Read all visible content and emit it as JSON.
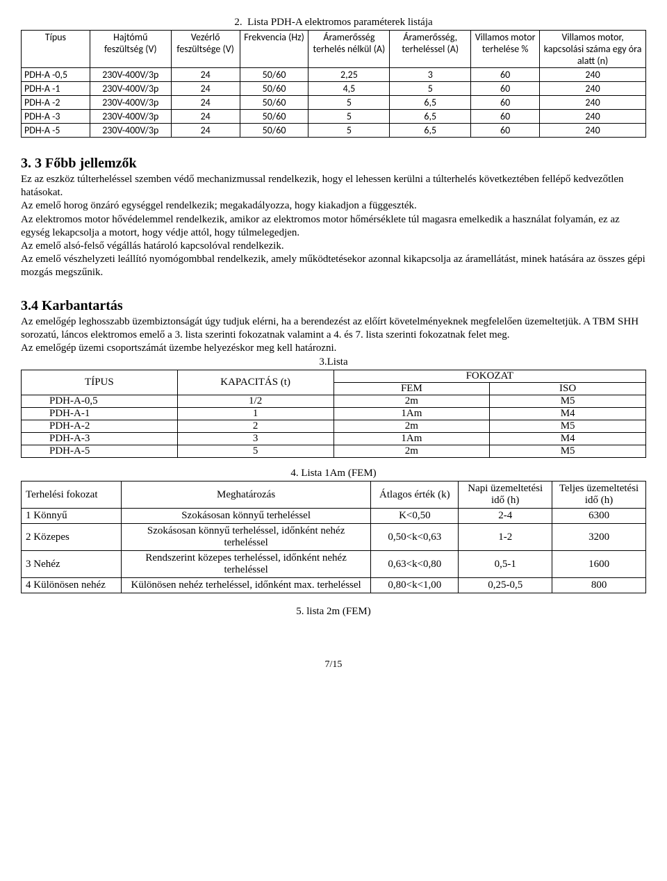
{
  "title_para": "2.  Lista PDH-A elektromos paraméterek listája",
  "table1_caption": "",
  "t1_headers": [
    "Típus",
    "Hajtómű feszültség (V)",
    "Vezérlő feszültsége (V)",
    "Frekvencia (Hz)",
    "Áramerősség terhelés nélkül (A)",
    "Áramerősség, terheléssel (A)",
    "Villamos motor terhelése %",
    "Villamos motor, kapcsolási száma egy óra alatt (n)"
  ],
  "t1_rows": [
    [
      "PDH-A -0,5",
      "230V-400V/3p",
      "24",
      "50/60",
      "2,25",
      "3",
      "60",
      "240"
    ],
    [
      "PDH-A -1",
      "230V-400V/3p",
      "24",
      "50/60",
      "4,5",
      "5",
      "60",
      "240"
    ],
    [
      "PDH-A -2",
      "230V-400V/3p",
      "24",
      "50/60",
      "5",
      "6,5",
      "60",
      "240"
    ],
    [
      "PDH-A -3",
      "230V-400V/3p",
      "24",
      "50/60",
      "5",
      "6,5",
      "60",
      "240"
    ],
    [
      "PDH-A -5",
      "230V-400V/3p",
      "24",
      "50/60",
      "5",
      "6,5",
      "60",
      "240"
    ]
  ],
  "sec33_title": "3. 3 Főbb jellemzők",
  "sec33_body": "Ez az eszköz túlterheléssel szemben védő mechanizmussal rendelkezik, hogy el lehessen kerülni a túlterhelés következtében fellépő kedvezőtlen hatásokat.\nAz emelő horog önzáró egységgel rendelkezik; megakadályozza, hogy kiakadjon a függeszték.\nAz elektromos motor hővédelemmel rendelkezik, amikor az elektromos motor hőmérséklete túl magasra emelkedik a használat folyamán, ez az egység lekapcsolja a motort, hogy védje attól, hogy túlmelegedjen.\nAz emelő alsó-felső végállás határoló kapcsolóval rendelkezik.\nAz emelő vészhelyzeti leállító nyomógombbal rendelkezik, amely működtetésekor azonnal kikapcsolja az áramellátást, minek hatására az összes gépi mozgás megszűnik.",
  "sec34_title": "3.4 Karbantartás",
  "sec34_body_a": "Az emelőgép leghosszabb üzembiztonságát úgy tudjuk elérni, ha a berendezést az előírt követelményeknek megfelelően üzemeltetjük. A TBM SHH sorozatú, láncos elektromos emelő a 3. lista szerinti fokozatnak valamint a 4. és 7. lista szerinti fokozatnak felet meg.",
  "sec34_body_b": "Az emelőgép üzemi csoportszámát üzembe helyezéskor meg kell határozni.",
  "t3_caption": "3.Lista",
  "t3_h_type": "TÍPUS",
  "t3_h_cap": "KAPACITÁS (t)",
  "t3_h_fok": "FOKOZAT",
  "t3_h_fem": "FEM",
  "t3_h_iso": "ISO",
  "t3_rows": [
    [
      "PDH-A-0,5",
      "1/2",
      "2m",
      "M5"
    ],
    [
      "PDH-A-1",
      "1",
      "1Am",
      "M4"
    ],
    [
      "PDH-A-2",
      "2",
      "2m",
      "M5"
    ],
    [
      "PDH-A-3",
      "3",
      "1Am",
      "M4"
    ],
    [
      "PDH-A-5",
      "5",
      "2m",
      "M5"
    ]
  ],
  "t4_caption": "4. Lista 1Am (FEM)",
  "t4_headers": [
    "Terhelési fokozat",
    "Meghatározás",
    "Átlagos érték (k)",
    "Napi üzemeltetési idő (h)",
    "Teljes üzemeltetési idő (h)"
  ],
  "t4_rows": [
    [
      "1 Könnyű",
      "Szokásosan könnyű terheléssel",
      "K<0,50",
      "2-4",
      "6300"
    ],
    [
      "2 Közepes",
      "Szokásosan könnyű terheléssel, időnként nehéz terheléssel",
      "0,50<k<0,63",
      "1-2",
      "3200"
    ],
    [
      "3 Nehéz",
      "Rendszerint közepes terheléssel, időnként nehéz terheléssel",
      "0,63<k<0,80",
      "0,5-1",
      "1600"
    ],
    [
      "4 Különösen nehéz",
      "Különösen nehéz terheléssel, időnként max. terheléssel",
      "0,80<k<1,00",
      "0,25-0,5",
      "800"
    ]
  ],
  "t5_caption": "5. lista 2m (FEM)",
  "page_num": "7/15",
  "style": {
    "page_bg": "#ffffff",
    "text_color": "#000000",
    "border_color": "#000000",
    "font_body": "Times New Roman",
    "font_t1": "Calibri",
    "t1_font_size": 14,
    "body_font_size": 15,
    "heading_font_size": 20,
    "t1_col_widths_pct": [
      11,
      13,
      11,
      11,
      13,
      13,
      11,
      17
    ],
    "t3_col_widths_pct": [
      25,
      25,
      25,
      25
    ],
    "t4_col_widths_pct": [
      16,
      40,
      14,
      15,
      15
    ]
  }
}
